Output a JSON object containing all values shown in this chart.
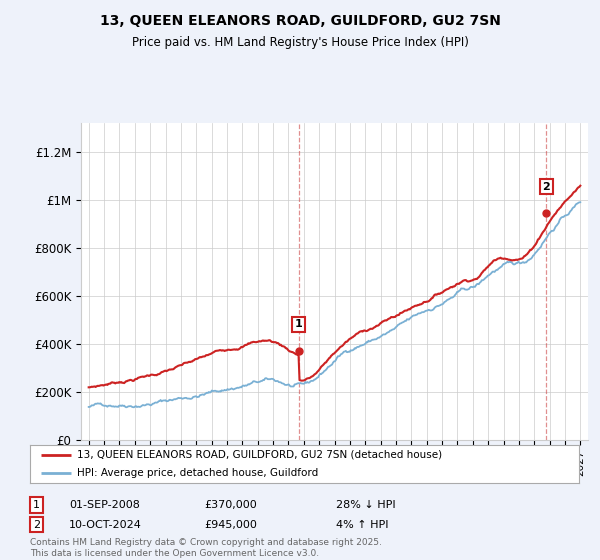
{
  "title_line1": "13, QUEEN ELEANORS ROAD, GUILDFORD, GU2 7SN",
  "title_line2": "Price paid vs. HM Land Registry's House Price Index (HPI)",
  "ylabel_ticks": [
    "£0",
    "£200K",
    "£400K",
    "£600K",
    "£800K",
    "£1M",
    "£1.2M"
  ],
  "ytick_values": [
    0,
    200000,
    400000,
    600000,
    800000,
    1000000,
    1200000
  ],
  "ylim": [
    0,
    1320000
  ],
  "xlim_start": 1994.5,
  "xlim_end": 2027.5,
  "x_start_year": 1995,
  "x_end_year": 2027,
  "hpi_color": "#7ab0d4",
  "price_color": "#cc2222",
  "sale1_date": 2008.67,
  "sale1_price": 370000,
  "sale1_label": "1",
  "sale2_date": 2024.78,
  "sale2_price": 945000,
  "sale2_label": "2",
  "legend_line1": "13, QUEEN ELEANORS ROAD, GUILDFORD, GU2 7SN (detached house)",
  "legend_line2": "HPI: Average price, detached house, Guildford",
  "annotation1_date": "01-SEP-2008",
  "annotation1_price": "£370,000",
  "annotation1_hpi": "28% ↓ HPI",
  "annotation2_date": "10-OCT-2024",
  "annotation2_price": "£945,000",
  "annotation2_hpi": "4% ↑ HPI",
  "footer": "Contains HM Land Registry data © Crown copyright and database right 2025.\nThis data is licensed under the Open Government Licence v3.0.",
  "background_color": "#eef2fa",
  "plot_bg_color": "#ffffff",
  "grid_color": "#cccccc"
}
